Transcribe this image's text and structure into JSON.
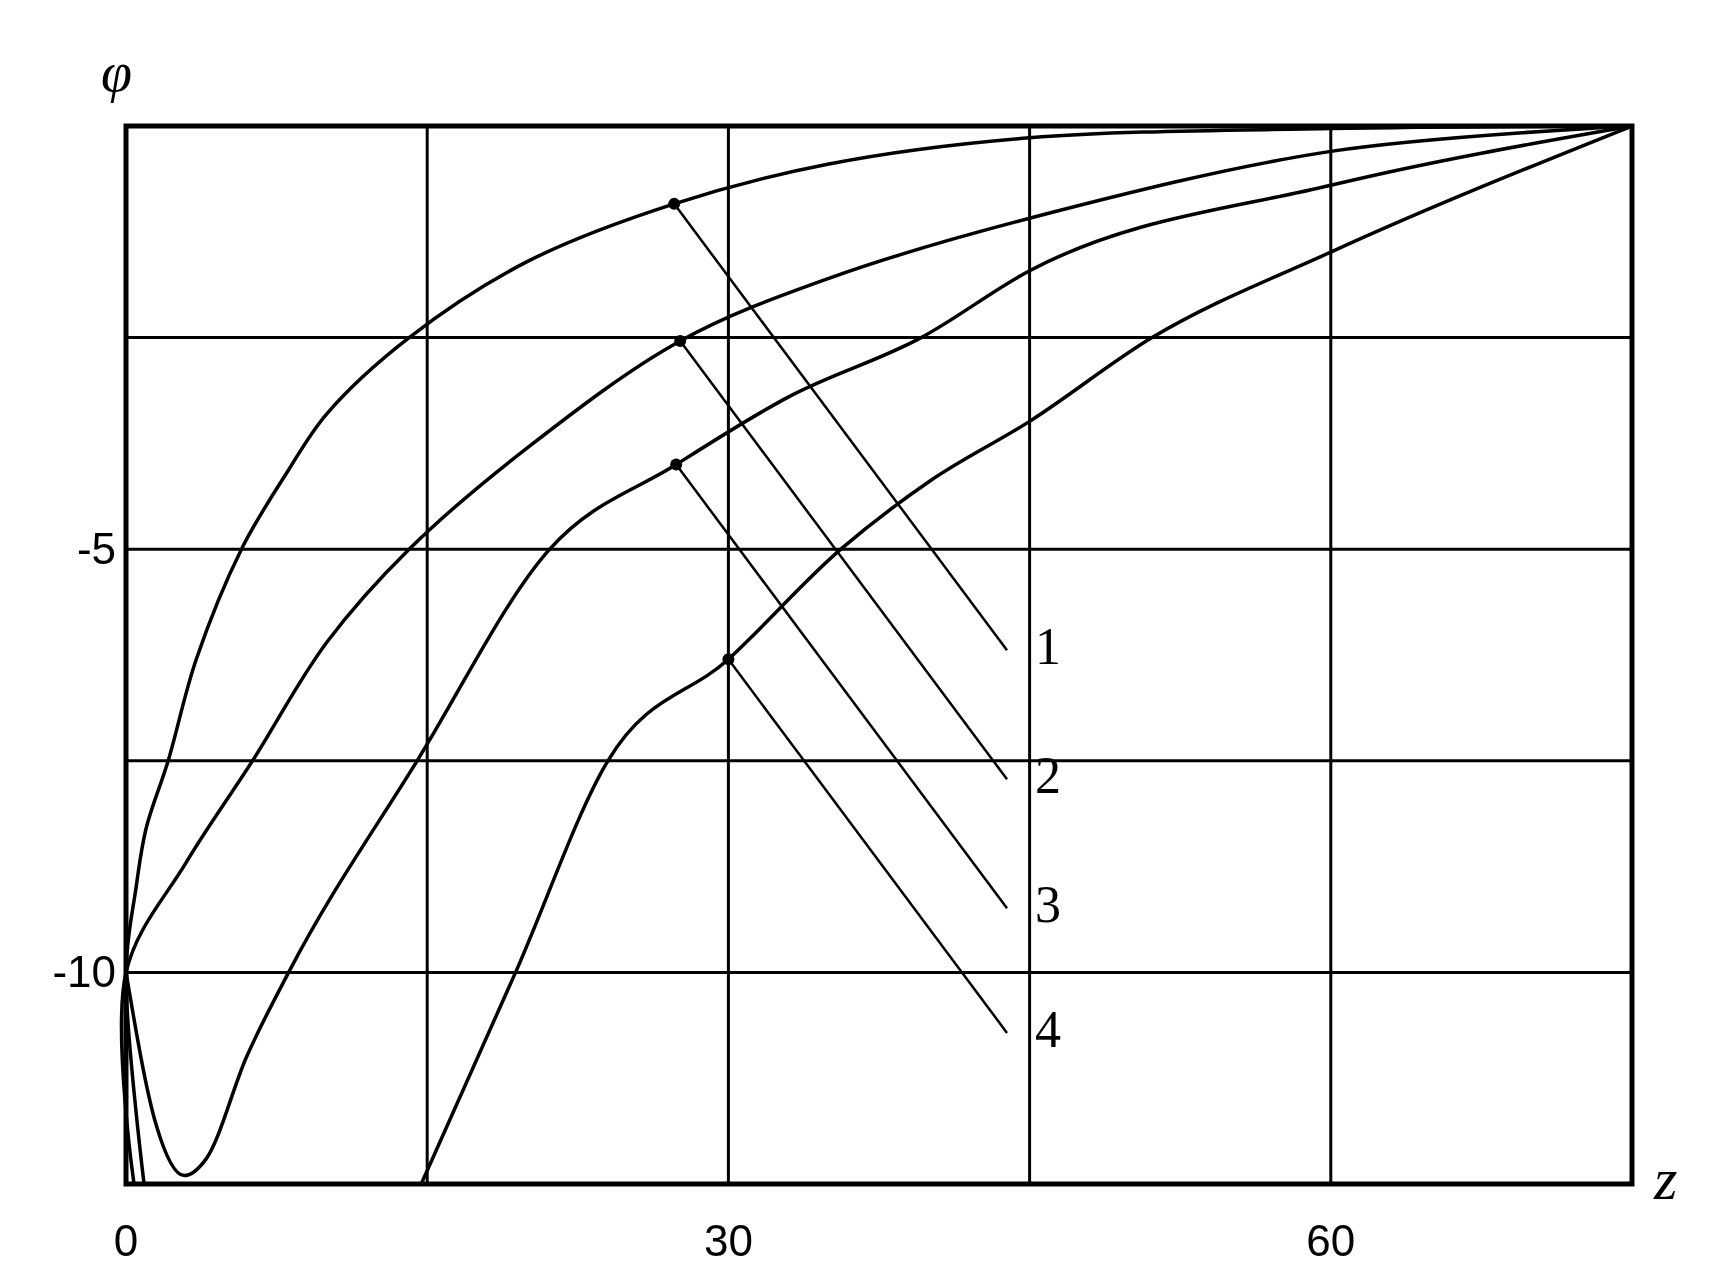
{
  "chart_data": {
    "type": "line",
    "xlabel": "z",
    "ylabel": "φ",
    "xlim": [
      0,
      75
    ],
    "ylim": [
      -12.5,
      0
    ],
    "xticks": [
      0,
      {
        "value": 15,
        "label": null
      },
      30,
      {
        "value": 45,
        "label": null
      },
      60,
      {
        "value": 75,
        "label": null
      }
    ],
    "yticks": [
      {
        "value": 0,
        "label": null
      },
      {
        "value": -2.5,
        "label": null
      },
      -5,
      {
        "value": -7.5,
        "label": null
      },
      -10,
      {
        "value": -12.5,
        "label": null
      }
    ],
    "grid": true,
    "marker": "none",
    "line_style": "solid",
    "series": [
      {
        "color": "#000000",
        "x": [
          0.9,
          0,
          0.5,
          1,
          2.1,
          3.5,
          5.75,
          8,
          10,
          14.1,
          20,
          27.3,
          35,
          45,
          60,
          75
        ],
        "values": [
          -12.5,
          -10,
          -9,
          -8.3,
          -7.5,
          -6.3,
          -5,
          -4.1,
          -3.4,
          -2.5,
          -1.6,
          -0.92,
          -0.45,
          -0.14,
          -0.03,
          0
        ]
      },
      {
        "color": "#000000",
        "x": [
          0.4,
          0,
          3,
          6.3,
          10,
          14.1,
          20,
          27.6,
          35,
          45,
          60,
          75
        ],
        "values": [
          -12.5,
          -10,
          -8.7,
          -7.5,
          -6.1,
          -5,
          -3.8,
          -2.54,
          -1.8,
          -1.09,
          -0.3,
          0
        ]
      },
      {
        "color": "#000000",
        "x": [
          0,
          1.5,
          2.9,
          4,
          6,
          8.1,
          14.5,
          21.1,
          27.4,
          33,
          39.6,
          45,
          60,
          75
        ],
        "values": [
          -10,
          -11.8,
          -12.4,
          -12.2,
          -11,
          -10,
          -7.5,
          -5,
          -4,
          -3.2,
          -2.5,
          -1.71,
          -0.7,
          0
        ]
      },
      {
        "color": "#000000",
        "x": [
          14.7,
          19.4,
          24,
          30,
          35.6,
          40,
          45,
          51.1,
          60,
          75
        ],
        "values": [
          -12.5,
          -10,
          -7.5,
          -6.3,
          -5,
          -4.2,
          -3.49,
          -2.5,
          -1.49,
          0
        ]
      }
    ],
    "annotations": [
      {
        "text": "1",
        "x": 27.3,
        "y": -0.92
      },
      {
        "text": "2",
        "x": 27.6,
        "y": -2.54
      },
      {
        "text": "3",
        "x": 27.4,
        "y": -4
      },
      {
        "text": "4",
        "x": 30,
        "y": -6.3
      }
    ]
  }
}
